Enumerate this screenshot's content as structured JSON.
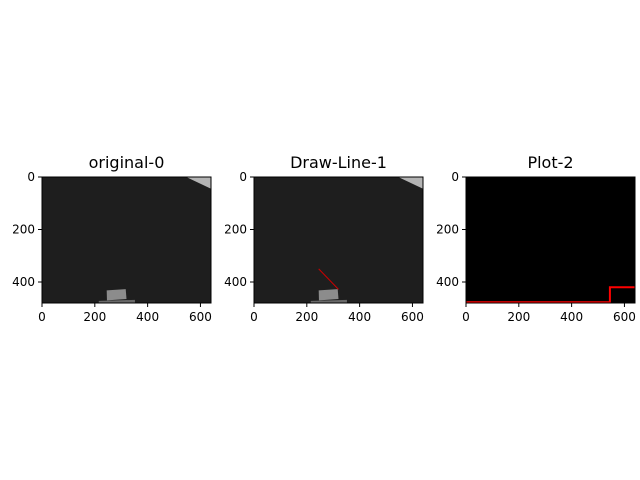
{
  "chart_data": [
    {
      "type": "image",
      "title": "original-0",
      "xlim": [
        0,
        640
      ],
      "ylim": [
        480,
        0
      ],
      "xticks": [
        0,
        200,
        400,
        600
      ],
      "yticks": [
        0,
        200,
        400
      ],
      "background": "#1e1e1e",
      "objects": [
        {
          "name": "corner-patch",
          "color": "#b4b4b4",
          "points": [
            [
              546,
              0
            ],
            [
              640,
              0
            ],
            [
              640,
              45
            ]
          ]
        },
        {
          "name": "block",
          "color": "#8c8c8c",
          "points": [
            [
              245,
              432
            ],
            [
              317,
              427
            ],
            [
              320,
              465
            ],
            [
              246,
              470
            ]
          ]
        },
        {
          "name": "base-strip",
          "color": "#696969",
          "points": [
            [
              215,
              472
            ],
            [
              352,
              468
            ],
            [
              352,
              480
            ],
            [
              215,
              480
            ]
          ]
        }
      ]
    },
    {
      "type": "image",
      "title": "Draw-Line-1",
      "xlim": [
        0,
        640
      ],
      "ylim": [
        480,
        0
      ],
      "xticks": [
        0,
        200,
        400,
        600
      ],
      "yticks": [
        0,
        200,
        400
      ],
      "background": "#1e1e1e",
      "objects": [
        {
          "name": "corner-patch",
          "color": "#b4b4b4",
          "points": [
            [
              546,
              0
            ],
            [
              640,
              0
            ],
            [
              640,
              45
            ]
          ]
        },
        {
          "name": "block",
          "color": "#8c8c8c",
          "points": [
            [
              245,
              432
            ],
            [
              317,
              427
            ],
            [
              320,
              465
            ],
            [
              246,
              470
            ]
          ]
        },
        {
          "name": "base-strip",
          "color": "#696969",
          "points": [
            [
              215,
              472
            ],
            [
              352,
              468
            ],
            [
              352,
              480
            ],
            [
              215,
              480
            ]
          ]
        }
      ],
      "lines": [
        {
          "color": "#cc0000",
          "x": [
            245,
            320
          ],
          "y": [
            350,
            428
          ]
        }
      ]
    },
    {
      "type": "line",
      "title": "Plot-2",
      "xlim": [
        0,
        640
      ],
      "ylim": [
        480,
        0
      ],
      "xticks": [
        0,
        200,
        400,
        600
      ],
      "yticks": [
        0,
        200,
        400
      ],
      "background": "#000000",
      "series": [
        {
          "color": "#ff0000",
          "x": [
            0,
            545,
            545,
            560,
            640
          ],
          "y": [
            477,
            477,
            420,
            420,
            420
          ]
        }
      ]
    }
  ]
}
